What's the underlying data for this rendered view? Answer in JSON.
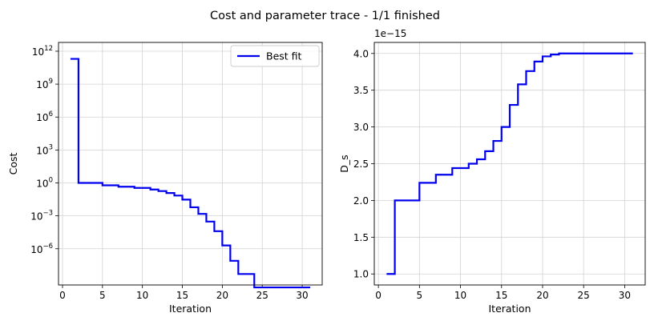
{
  "figure": {
    "suptitle": "Cost and parameter trace - 1/1 finished"
  },
  "chart_data": [
    {
      "type": "line",
      "drawstyle": "steps-post",
      "title": "",
      "xlabel": "Iteration",
      "ylabel": "Cost",
      "yscale": "log",
      "xlim": [
        -0.5,
        32.5
      ],
      "ylim_exp": [
        -9.3,
        12.8
      ],
      "xticks": [
        0,
        5,
        10,
        15,
        20,
        25,
        30
      ],
      "yticks": [
        {
          "exp": 12,
          "base": "10",
          "sup": "12"
        },
        {
          "exp": 9,
          "base": "10",
          "sup": "9"
        },
        {
          "exp": 6,
          "base": "10",
          "sup": "6"
        },
        {
          "exp": 3,
          "base": "10",
          "sup": "3"
        },
        {
          "exp": 0,
          "base": "10",
          "sup": "0"
        },
        {
          "exp": -3,
          "base": "10",
          "sup": "−3"
        },
        {
          "exp": -6,
          "base": "10",
          "sup": "−6"
        }
      ],
      "grid": true,
      "legend": {
        "location": "upper right",
        "entries": [
          "Best fit"
        ]
      },
      "series": [
        {
          "name": "Best fit",
          "color": "#0000ee",
          "x": [
            1,
            2,
            5,
            7,
            9,
            11,
            12,
            13,
            14,
            15,
            16,
            17,
            18,
            19,
            20,
            21,
            22,
            24,
            31
          ],
          "y": [
            200000000000.0,
            1,
            0.6,
            0.45,
            0.35,
            0.25,
            0.18,
            0.12,
            0.07,
            0.03,
            0.006,
            0.0015,
            0.0003,
            4e-05,
            2e-06,
            8e-08,
            5e-09,
            3e-10,
            3e-10
          ]
        }
      ]
    },
    {
      "type": "line",
      "drawstyle": "steps-post",
      "title": "",
      "xlabel": "Iteration",
      "ylabel": "D_s",
      "offset_text": "1e−15",
      "xlim": [
        -0.5,
        32.5
      ],
      "ylim": [
        0.85,
        4.15
      ],
      "xticks": [
        0,
        5,
        10,
        15,
        20,
        25,
        30
      ],
      "yticks": [
        "1.0",
        "1.5",
        "2.0",
        "2.5",
        "3.0",
        "3.5",
        "4.0"
      ],
      "grid": true,
      "series": [
        {
          "color": "#0000ee",
          "x": [
            1,
            2,
            5,
            7,
            9,
            11,
            12,
            13,
            14,
            15,
            16,
            17,
            18,
            19,
            20,
            21,
            22,
            31
          ],
          "y": [
            1.0,
            2.0,
            2.24,
            2.35,
            2.44,
            2.5,
            2.56,
            2.67,
            2.81,
            3.0,
            3.3,
            3.58,
            3.76,
            3.89,
            3.96,
            3.985,
            4.0,
            4.0
          ]
        }
      ]
    }
  ]
}
